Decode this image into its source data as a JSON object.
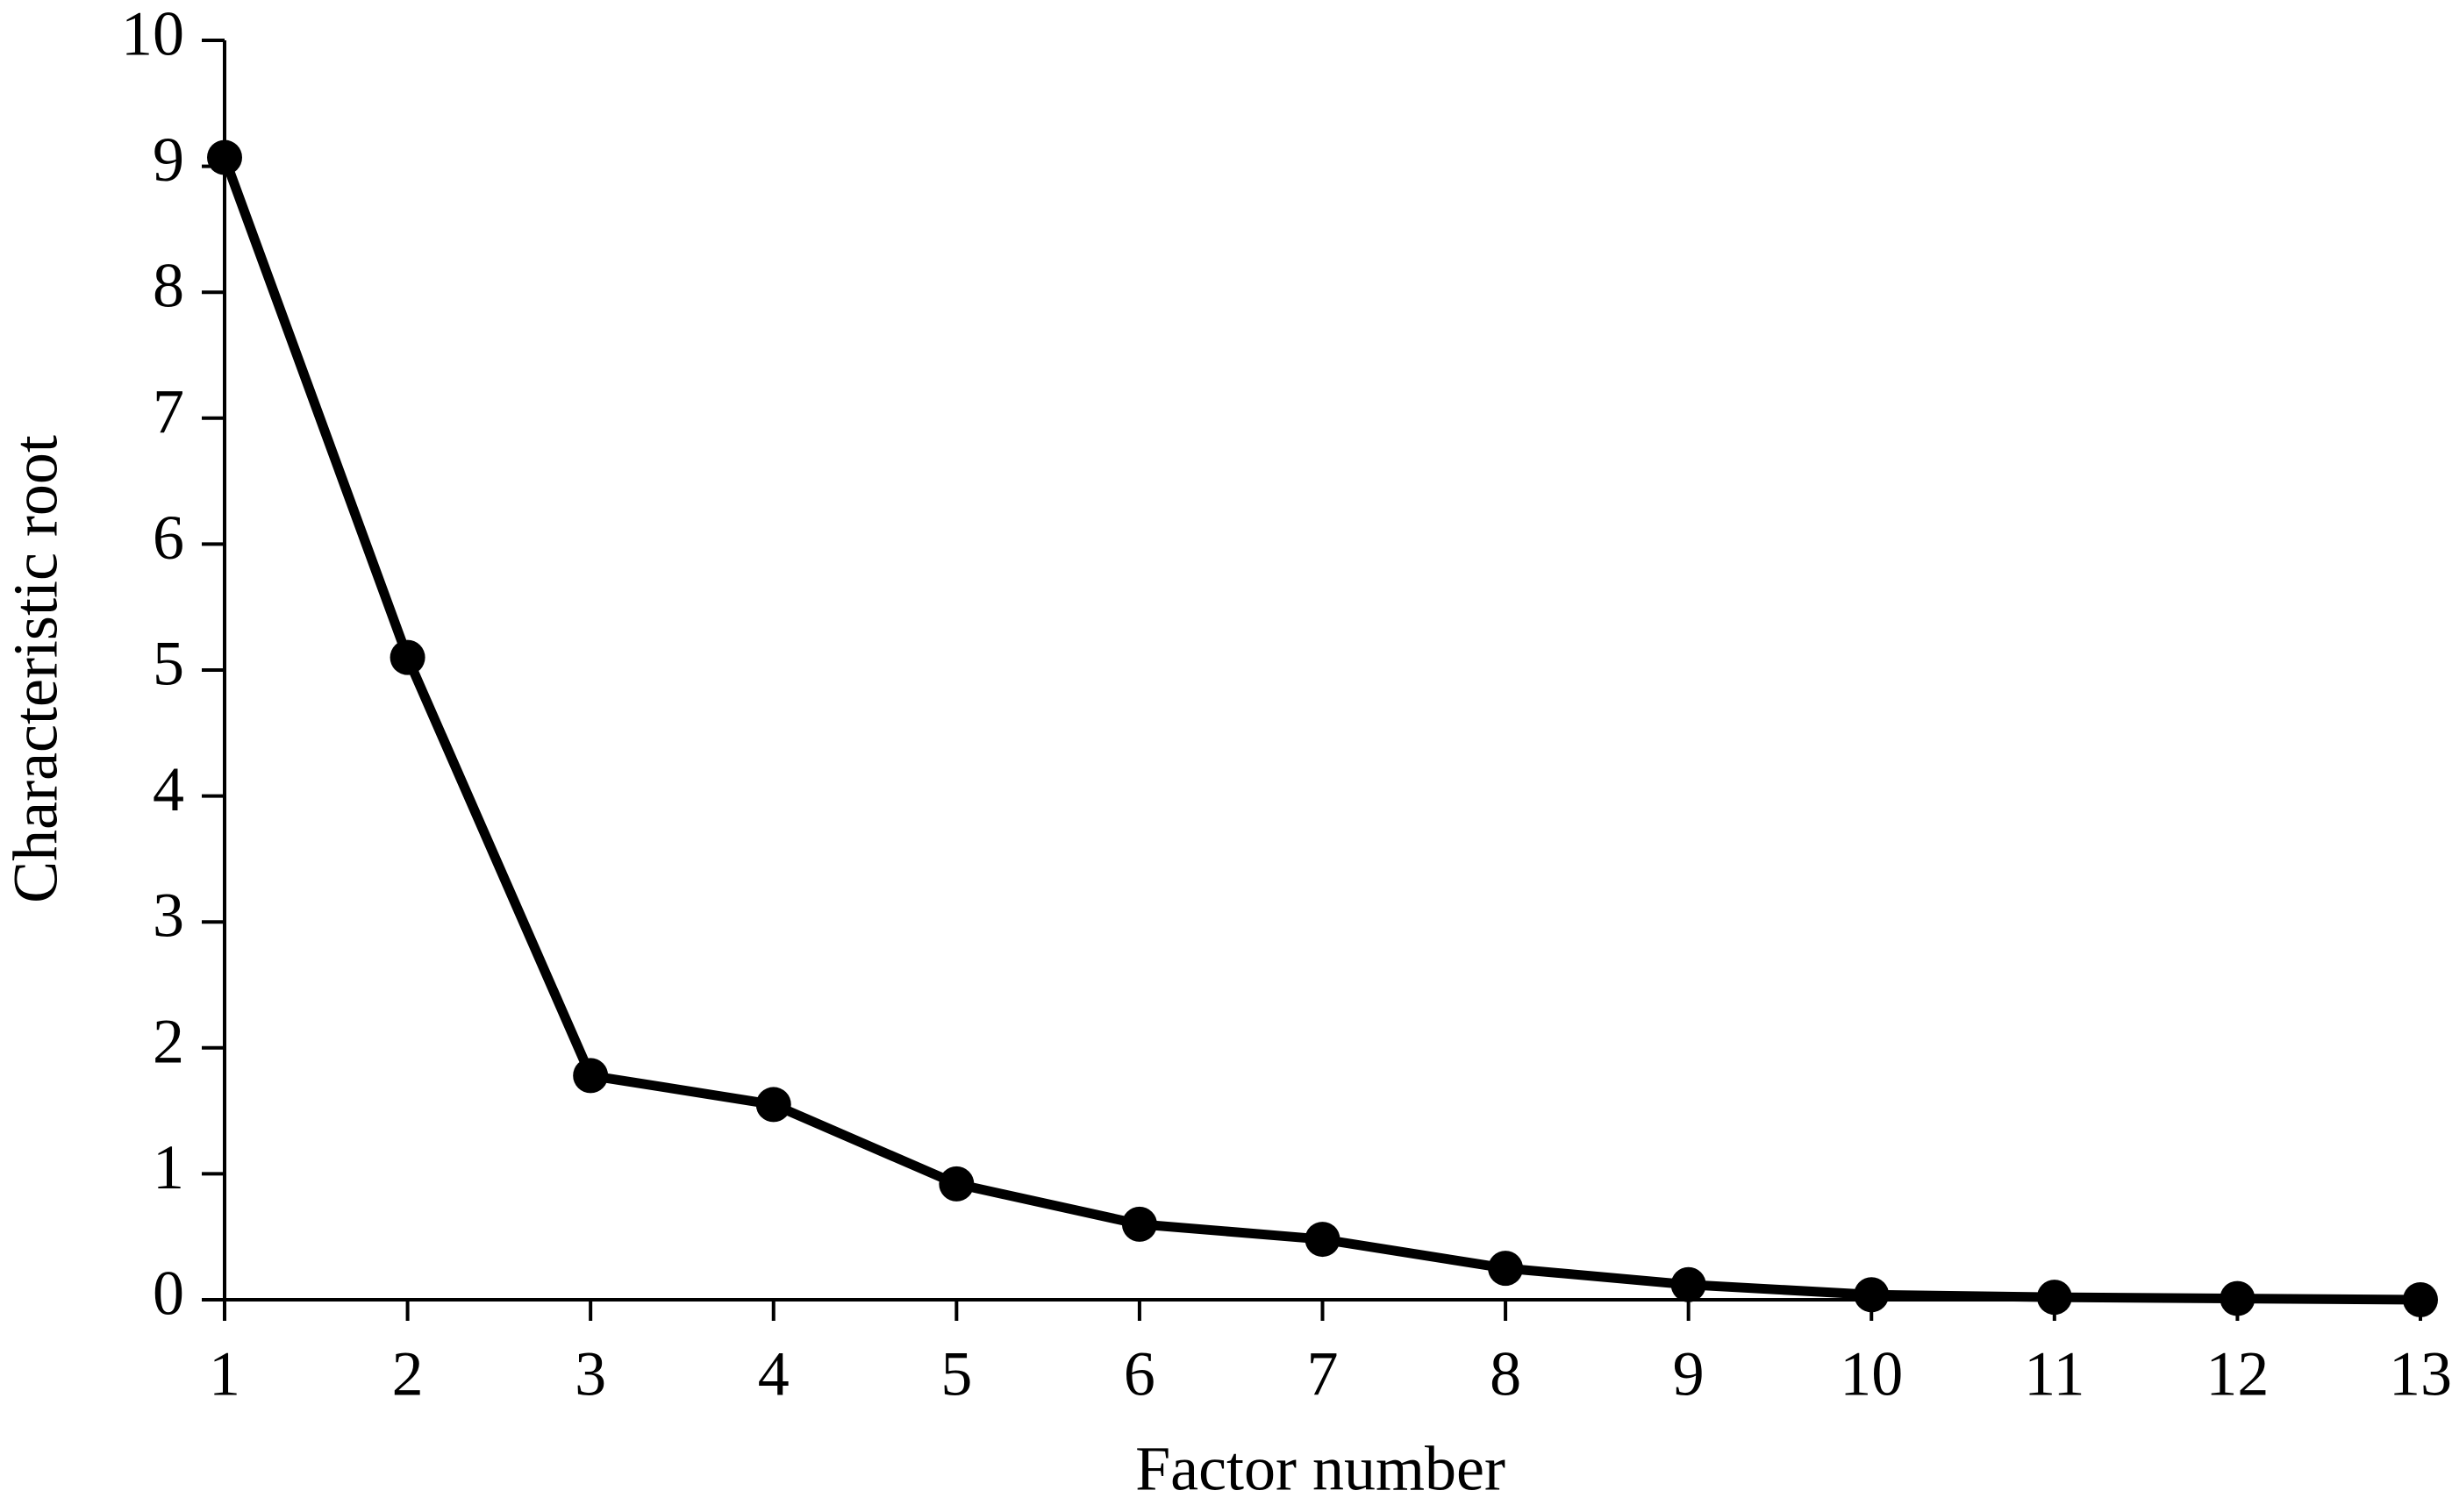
{
  "chart_data": {
    "type": "line",
    "xlabel": "Factor number",
    "ylabel": "Characteristic root",
    "x": [
      1,
      2,
      3,
      4,
      5,
      6,
      7,
      8,
      9,
      10,
      11,
      12,
      13
    ],
    "values": [
      9.07,
      5.1,
      1.78,
      1.55,
      0.92,
      0.6,
      0.48,
      0.25,
      0.12,
      0.04,
      0.02,
      0.01,
      0.0
    ],
    "color": "#000000",
    "markers": true,
    "xlim": [
      1,
      13
    ],
    "xticks": [
      1,
      2,
      3,
      4,
      5,
      6,
      7,
      8,
      9,
      10,
      11,
      12,
      13
    ],
    "ylim": [
      0,
      10
    ],
    "yticks": [
      0,
      1,
      2,
      3,
      4,
      5,
      6,
      7,
      8,
      9,
      10
    ],
    "grid": false
  }
}
